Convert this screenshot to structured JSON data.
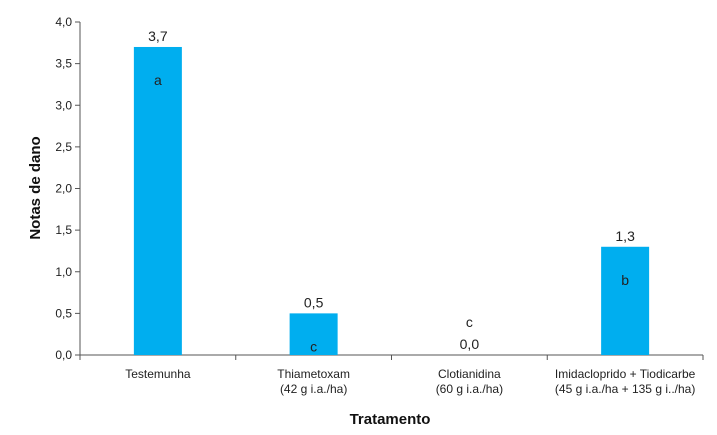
{
  "chart_data": {
    "type": "bar",
    "xlabel": "Tratamento",
    "ylabel": "Notas de dano",
    "ylim": [
      0,
      4
    ],
    "yticks": [
      "0,0",
      "0,5",
      "1,0",
      "1,5",
      "2,0",
      "2,5",
      "3,0",
      "3,5",
      "4,0"
    ],
    "grid": false,
    "bar_color": "#00aeef",
    "categories": [
      {
        "lines": [
          "Testemunha"
        ]
      },
      {
        "lines": [
          "Thiametoxam",
          "(42 g i.a./ha)"
        ]
      },
      {
        "lines": [
          "Clotianidina",
          "(60 g i.a./ha)"
        ]
      },
      {
        "lines": [
          "Imidacloprido + Tiodicarbe",
          "(45 g i.a./ha + 135 g i../ha)"
        ]
      }
    ],
    "values": [
      3.7,
      0.5,
      0.0,
      1.3
    ],
    "value_labels": [
      "3,7",
      "0,5",
      "0,0",
      "1,3"
    ],
    "letters": [
      "a",
      "c",
      "c",
      "b"
    ]
  }
}
